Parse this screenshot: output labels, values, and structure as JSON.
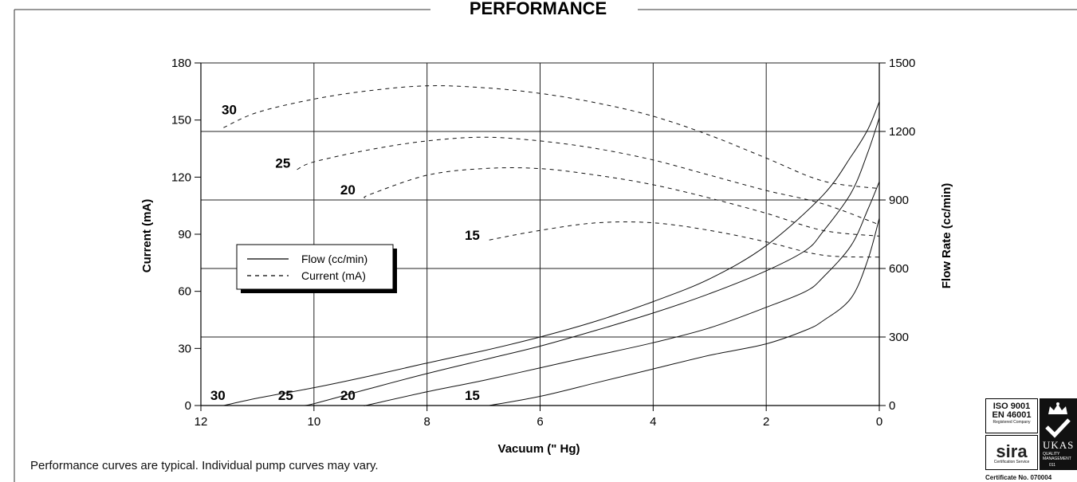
{
  "page": {
    "title": "PERFORMANCE"
  },
  "footnote": "Performance curves are typical. Individual pump curves may vary.",
  "certification": {
    "iso_line1": "ISO 9001",
    "iso_line2": "EN 46001",
    "iso_registered": "Registered Company",
    "sira": "sira",
    "sira_service": "Certification Service",
    "ukas": "UKAS",
    "ukas_sub": "QUALITY MANAGEMENT",
    "ukas_number": "011",
    "certificate": "Certificate No. 070004"
  },
  "chart_data": {
    "type": "line",
    "title": "PERFORMANCE",
    "xlabel": "Vacuum (\" Hg)",
    "ylabel": "Current (mA)",
    "y2label": "Flow Rate (cc/min)",
    "xlim": [
      12,
      0
    ],
    "ylim": [
      0,
      180
    ],
    "y2lim": [
      0,
      1500
    ],
    "x_ticks": [
      "12",
      "10",
      "8",
      "6",
      "4",
      "2",
      "0"
    ],
    "y_ticks": [
      "0",
      "30",
      "60",
      "90",
      "120",
      "150",
      "180"
    ],
    "y2_ticks": [
      "0",
      "300",
      "600",
      "900",
      "1200",
      "1500"
    ],
    "grid": true,
    "legend": {
      "position": "middle-left",
      "entries": [
        {
          "label": "Flow (cc/min)",
          "style": "solid"
        },
        {
          "label": "Current (mA)",
          "style": "dashed"
        }
      ]
    },
    "current_series": [
      {
        "name": "30",
        "axis": "left",
        "style": "dashed",
        "points": [
          [
            11.6,
            146
          ],
          [
            11,
            154
          ],
          [
            10,
            161
          ],
          [
            9,
            165.5
          ],
          [
            8,
            168
          ],
          [
            7,
            167
          ],
          [
            6,
            164
          ],
          [
            5,
            159
          ],
          [
            4,
            152
          ],
          [
            3,
            142
          ],
          [
            2,
            130
          ],
          [
            1,
            118
          ],
          [
            0,
            114
          ]
        ]
      },
      {
        "name": "25",
        "axis": "left",
        "style": "dashed",
        "points": [
          [
            10.3,
            124
          ],
          [
            10,
            128
          ],
          [
            9,
            134.5
          ],
          [
            8,
            139
          ],
          [
            7,
            141
          ],
          [
            6,
            139
          ],
          [
            5,
            135
          ],
          [
            4,
            129
          ],
          [
            3,
            121
          ],
          [
            2,
            113
          ],
          [
            1,
            106
          ],
          [
            0,
            95
          ]
        ]
      },
      {
        "name": "20",
        "axis": "left",
        "style": "dashed",
        "points": [
          [
            9.1,
            109
          ],
          [
            9,
            111
          ],
          [
            8,
            121
          ],
          [
            7,
            124.5
          ],
          [
            6,
            124.5
          ],
          [
            5,
            121
          ],
          [
            4,
            116
          ],
          [
            3,
            109
          ],
          [
            2,
            101
          ],
          [
            1,
            92
          ],
          [
            0,
            89
          ]
        ]
      },
      {
        "name": "15",
        "axis": "left",
        "style": "dashed",
        "points": [
          [
            6.9,
            87
          ],
          [
            6,
            92
          ],
          [
            5,
            96
          ],
          [
            4,
            96
          ],
          [
            3,
            92
          ],
          [
            2,
            86
          ],
          [
            1,
            79
          ],
          [
            0,
            78
          ]
        ]
      }
    ],
    "flow_series": [
      {
        "name": "30",
        "axis": "right",
        "style": "solid",
        "points": [
          [
            11.6,
            0
          ],
          [
            11,
            32
          ],
          [
            10,
            78
          ],
          [
            9,
            130
          ],
          [
            8,
            186
          ],
          [
            7,
            240
          ],
          [
            6,
            300
          ],
          [
            5,
            370
          ],
          [
            4,
            455
          ],
          [
            3,
            555
          ],
          [
            2,
            700
          ],
          [
            1,
            920
          ],
          [
            0.5,
            1090
          ],
          [
            0.2,
            1210
          ],
          [
            0,
            1330
          ]
        ]
      },
      {
        "name": "25",
        "axis": "right",
        "style": "solid",
        "points": [
          [
            10.2,
            0
          ],
          [
            10,
            8
          ],
          [
            9,
            75
          ],
          [
            8,
            140
          ],
          [
            7,
            200
          ],
          [
            6,
            260
          ],
          [
            5,
            330
          ],
          [
            4,
            405
          ],
          [
            3,
            490
          ],
          [
            2,
            590
          ],
          [
            1.3,
            680
          ],
          [
            1,
            760
          ],
          [
            0.5,
            930
          ],
          [
            0.2,
            1110
          ],
          [
            0,
            1260
          ]
        ]
      },
      {
        "name": "20",
        "axis": "right",
        "style": "solid",
        "points": [
          [
            9.1,
            0
          ],
          [
            9,
            5
          ],
          [
            8,
            60
          ],
          [
            7,
            110
          ],
          [
            6,
            165
          ],
          [
            5,
            220
          ],
          [
            4,
            275
          ],
          [
            3,
            340
          ],
          [
            2,
            430
          ],
          [
            1.3,
            500
          ],
          [
            1,
            560
          ],
          [
            0.5,
            700
          ],
          [
            0.2,
            860
          ],
          [
            0,
            980
          ]
        ]
      },
      {
        "name": "15",
        "axis": "right",
        "style": "solid",
        "points": [
          [
            6.9,
            0
          ],
          [
            6,
            40
          ],
          [
            5,
            100
          ],
          [
            4,
            160
          ],
          [
            3,
            220
          ],
          [
            2,
            270
          ],
          [
            1.3,
            330
          ],
          [
            1,
            370
          ],
          [
            0.5,
            470
          ],
          [
            0.2,
            640
          ],
          [
            0,
            820
          ]
        ]
      }
    ],
    "curve_labels": [
      {
        "text": "30",
        "axis": "left",
        "x": 11.5,
        "y": 153
      },
      {
        "text": "25",
        "axis": "left",
        "x": 10.55,
        "y": 125
      },
      {
        "text": "20",
        "axis": "left",
        "x": 9.4,
        "y": 111
      },
      {
        "text": "15",
        "axis": "left",
        "x": 7.2,
        "y": 87
      },
      {
        "text": "30",
        "axis": "left",
        "x": 11.7,
        "y": 3
      },
      {
        "text": "25",
        "axis": "left",
        "x": 10.5,
        "y": 3
      },
      {
        "text": "20",
        "axis": "left",
        "x": 9.4,
        "y": 3
      },
      {
        "text": "15",
        "axis": "left",
        "x": 7.2,
        "y": 3
      }
    ]
  }
}
